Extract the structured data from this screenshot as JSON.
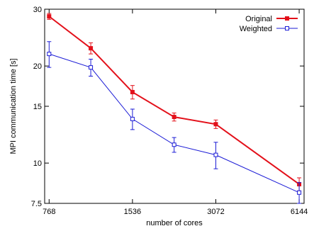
{
  "chart_data": {
    "type": "line",
    "title": "",
    "xlabel": "number of cores",
    "ylabel": "MPI communication time [s]",
    "x_scale": "log2",
    "y_scale": "log",
    "xlim": [
      740,
      6400
    ],
    "ylim": [
      7.5,
      30
    ],
    "x_ticks": [
      768,
      1536,
      3072,
      6144
    ],
    "x_tick_labels": [
      "768",
      "1536",
      "3072",
      "6144"
    ],
    "y_ticks": [
      7.5,
      10,
      15,
      20,
      30
    ],
    "y_tick_labels": [
      "7.5",
      "10",
      "15",
      "20",
      "30"
    ],
    "grid": false,
    "legend_position": "top-right",
    "series": [
      {
        "name": "Original",
        "color": "#e3101a",
        "marker": "filled-square",
        "x": [
          768,
          1086,
          1536,
          2172,
          3072,
          6144
        ],
        "y": [
          28.5,
          22.7,
          16.6,
          13.9,
          13.2,
          8.6
        ],
        "err": [
          0.6,
          0.9,
          0.8,
          0.4,
          0.4,
          0.4
        ]
      },
      {
        "name": "Weighted",
        "color": "#1b1bd6",
        "marker": "open-square",
        "x": [
          768,
          1086,
          1536,
          2172,
          3072,
          6144
        ],
        "y": [
          21.8,
          19.8,
          13.7,
          11.4,
          10.6,
          8.1
        ],
        "err": [
          2.0,
          1.2,
          1.0,
          0.6,
          1.0,
          0.6
        ]
      }
    ]
  }
}
